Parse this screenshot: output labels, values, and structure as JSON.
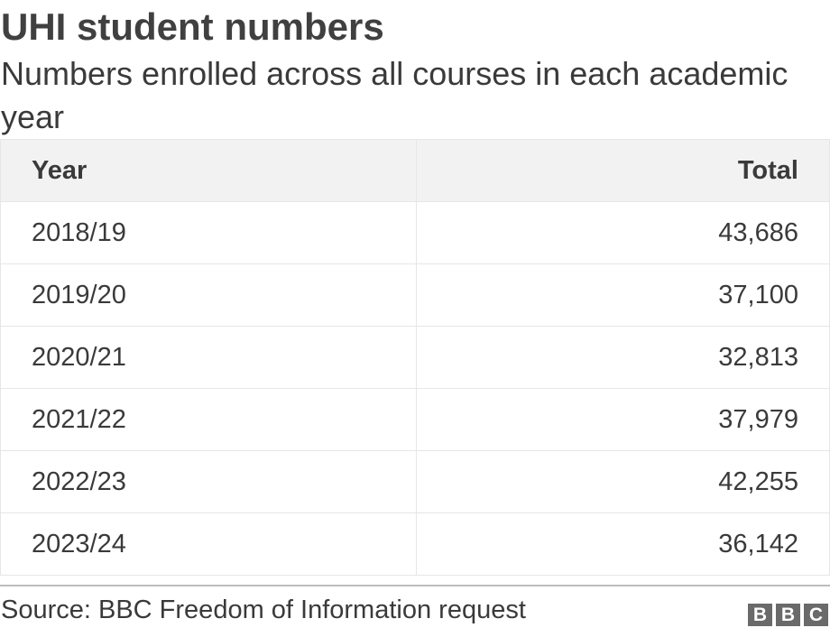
{
  "title": "UHI student numbers",
  "subtitle": "Numbers enrolled across all courses in each academic year",
  "chart_data": {
    "type": "table",
    "columns": [
      "Year",
      "Total"
    ],
    "rows": [
      [
        "2018/19",
        "43,686"
      ],
      [
        "2019/20",
        "37,100"
      ],
      [
        "2020/21",
        "32,813"
      ],
      [
        "2021/22",
        "37,979"
      ],
      [
        "2022/23",
        "42,255"
      ],
      [
        "2023/24",
        "36,142"
      ]
    ]
  },
  "source": "Source: BBC Freedom of Information request",
  "logo": [
    "B",
    "B",
    "C"
  ]
}
